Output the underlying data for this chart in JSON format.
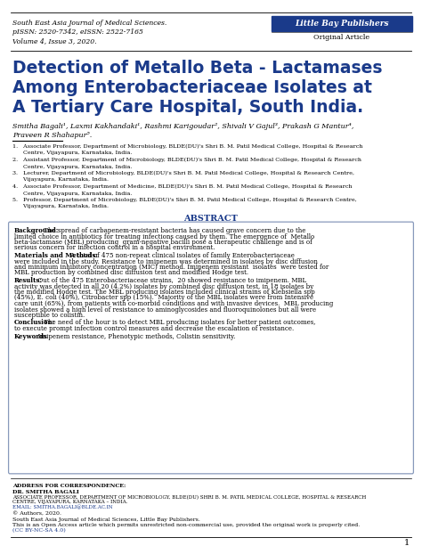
{
  "journal_line1": "South East Asia Journal of Medical Sciences.",
  "journal_line2": "pISSN: 2520-7342, eISSN: 2522-7165",
  "journal_line3": "Volume 4, Issue 3, 2020.",
  "publisher": "Little Bay Publishers",
  "article_type": "Original Article",
  "title_line1": "Detection of Metallo Beta - Lactamases",
  "title_line2": "Among Enterobacteriaceae Isolates at",
  "title_line3": "A Tertiary Care Hospital, South India.",
  "authors_line1": "Smitha Bagali¹, Laxmi Kakhandaki¹, Rashmi Karigoudar², Shivali V Gajul³, Prakash G Mantur⁴,",
  "authors_line2": "Praveen R Shahapur⁵.",
  "aff1": "1.   Associate Professor, Department of Microbiology, BLDE(DU)'s Shri B. M. Patil Medical College, Hospital & Research",
  "aff1b": "      Centre, Vijayapura, Karnataka, India.",
  "aff2": "2.   Assistant Professor, Department of Microbiology, BLDE(DU)'s Shri B. M. Patil Medical College, Hospital & Research",
  "aff2b": "      Centre, Vijayapura, Karnataka, India.",
  "aff3": "3.   Lecturer, Department of Microbiology, BLDE(DU)'s Shri B. M. Patil Medical College, Hospital & Research Centre,",
  "aff3b": "      Vijayapura, Karnataka, India.",
  "aff4": "4.   Associate Professor, Department of Medicine, BLDE(DU)'s Shri B. M. Patil Medical College, Hospital & Research",
  "aff4b": "      Centre, Vijayapura, Karnataka, India.",
  "aff5": "5.   Professor, Department of Microbiology, BLDE(DU)'s Shri B. M. Patil Medical College, Hospital & Research Centre,",
  "aff5b": "      Vijayapura, Karnataka, India.",
  "abstract_label": "Abstract",
  "bg_label": "Background:",
  "bg_text": " The spread of carbapenem-resistant bacteria has caused grave concern due to the limited choice in antibiotics for treating infections caused by them. The emergence of  Metallo beta-lactamase (MBL) producing  gram-negative bacilli pose a therapeutic challenge and is of  serious concern for infection control in a hospital environment.",
  "mm_label": "Materials and Methods:",
  "mm_text": " A total of 475 non-repeat clinical isolates of family Enterobacteriaceae were included in the study. Resistance to imipenem was determined in isolates by disc diffusion and minimum inhibitory concentration (MIC) method. Imipenem resistant  isolates  were tested for MBL production by combined disc diffusion test and modified Hodge test.",
  "res_label": "Results:",
  "res_text": "  Out of the 475 Enterobacteriaceae strains,  20 showed resistance to imipenem. MBL activity was detected in all 20 (4.2%) isolates by combined disc diffusion test, in 18 isolates by the modified Hodge test. The MBL producing isolates included clinical strains of Klebsiella spp (45%), E. coli (40%), Citrobacter spp (15%).  Majority of the MBL isolates were from Intensive care unit (65%), from patients with co-morbid conditions and with invasive devices.  MBL producing isolates showed a high level of resistance to aminoglycosides and fluoroquinolones but all were susceptible to colistin.",
  "conc_label": "Conclusion:",
  "conc_text": " The need of the hour is to detect MBL producing isolates for better patient outcomes, to execute prompt infection control measures and decrease the escalation of resistance.",
  "kw_label": "Keywords",
  "kw_text": ": Imipenem resistance, Phenotypic methods, Colistin sensitivity.",
  "addr_header": "Address for correspondence:",
  "addr_name": "Dr. Smitha Bagali",
  "addr_line1": "Associate Professor, Department of Microbiology, BLDE(DU) Shri B. M. Patil Medical College, Hospital & Research",
  "addr_line2": "Centre, Vijayapura, Karnataka – India.",
  "addr_email": "Email: smitha.bagali@blde.ac.in",
  "copy1": "© Authors, 2020.",
  "copy2": "South East Asia Journal of Medical Sciences, Little Bay Publishers.",
  "copy3": "This is an Open Access article which permits unrestricted non-commercial use, provided the original work is properly cited.",
  "copy4": "(CC BY-NC-SA 4.0)",
  "page_num": "1",
  "title_color": "#1a3a8a",
  "pub_bg": "#1a3a8a",
  "pub_fg": "#ffffff",
  "abs_border": "#8899bb"
}
